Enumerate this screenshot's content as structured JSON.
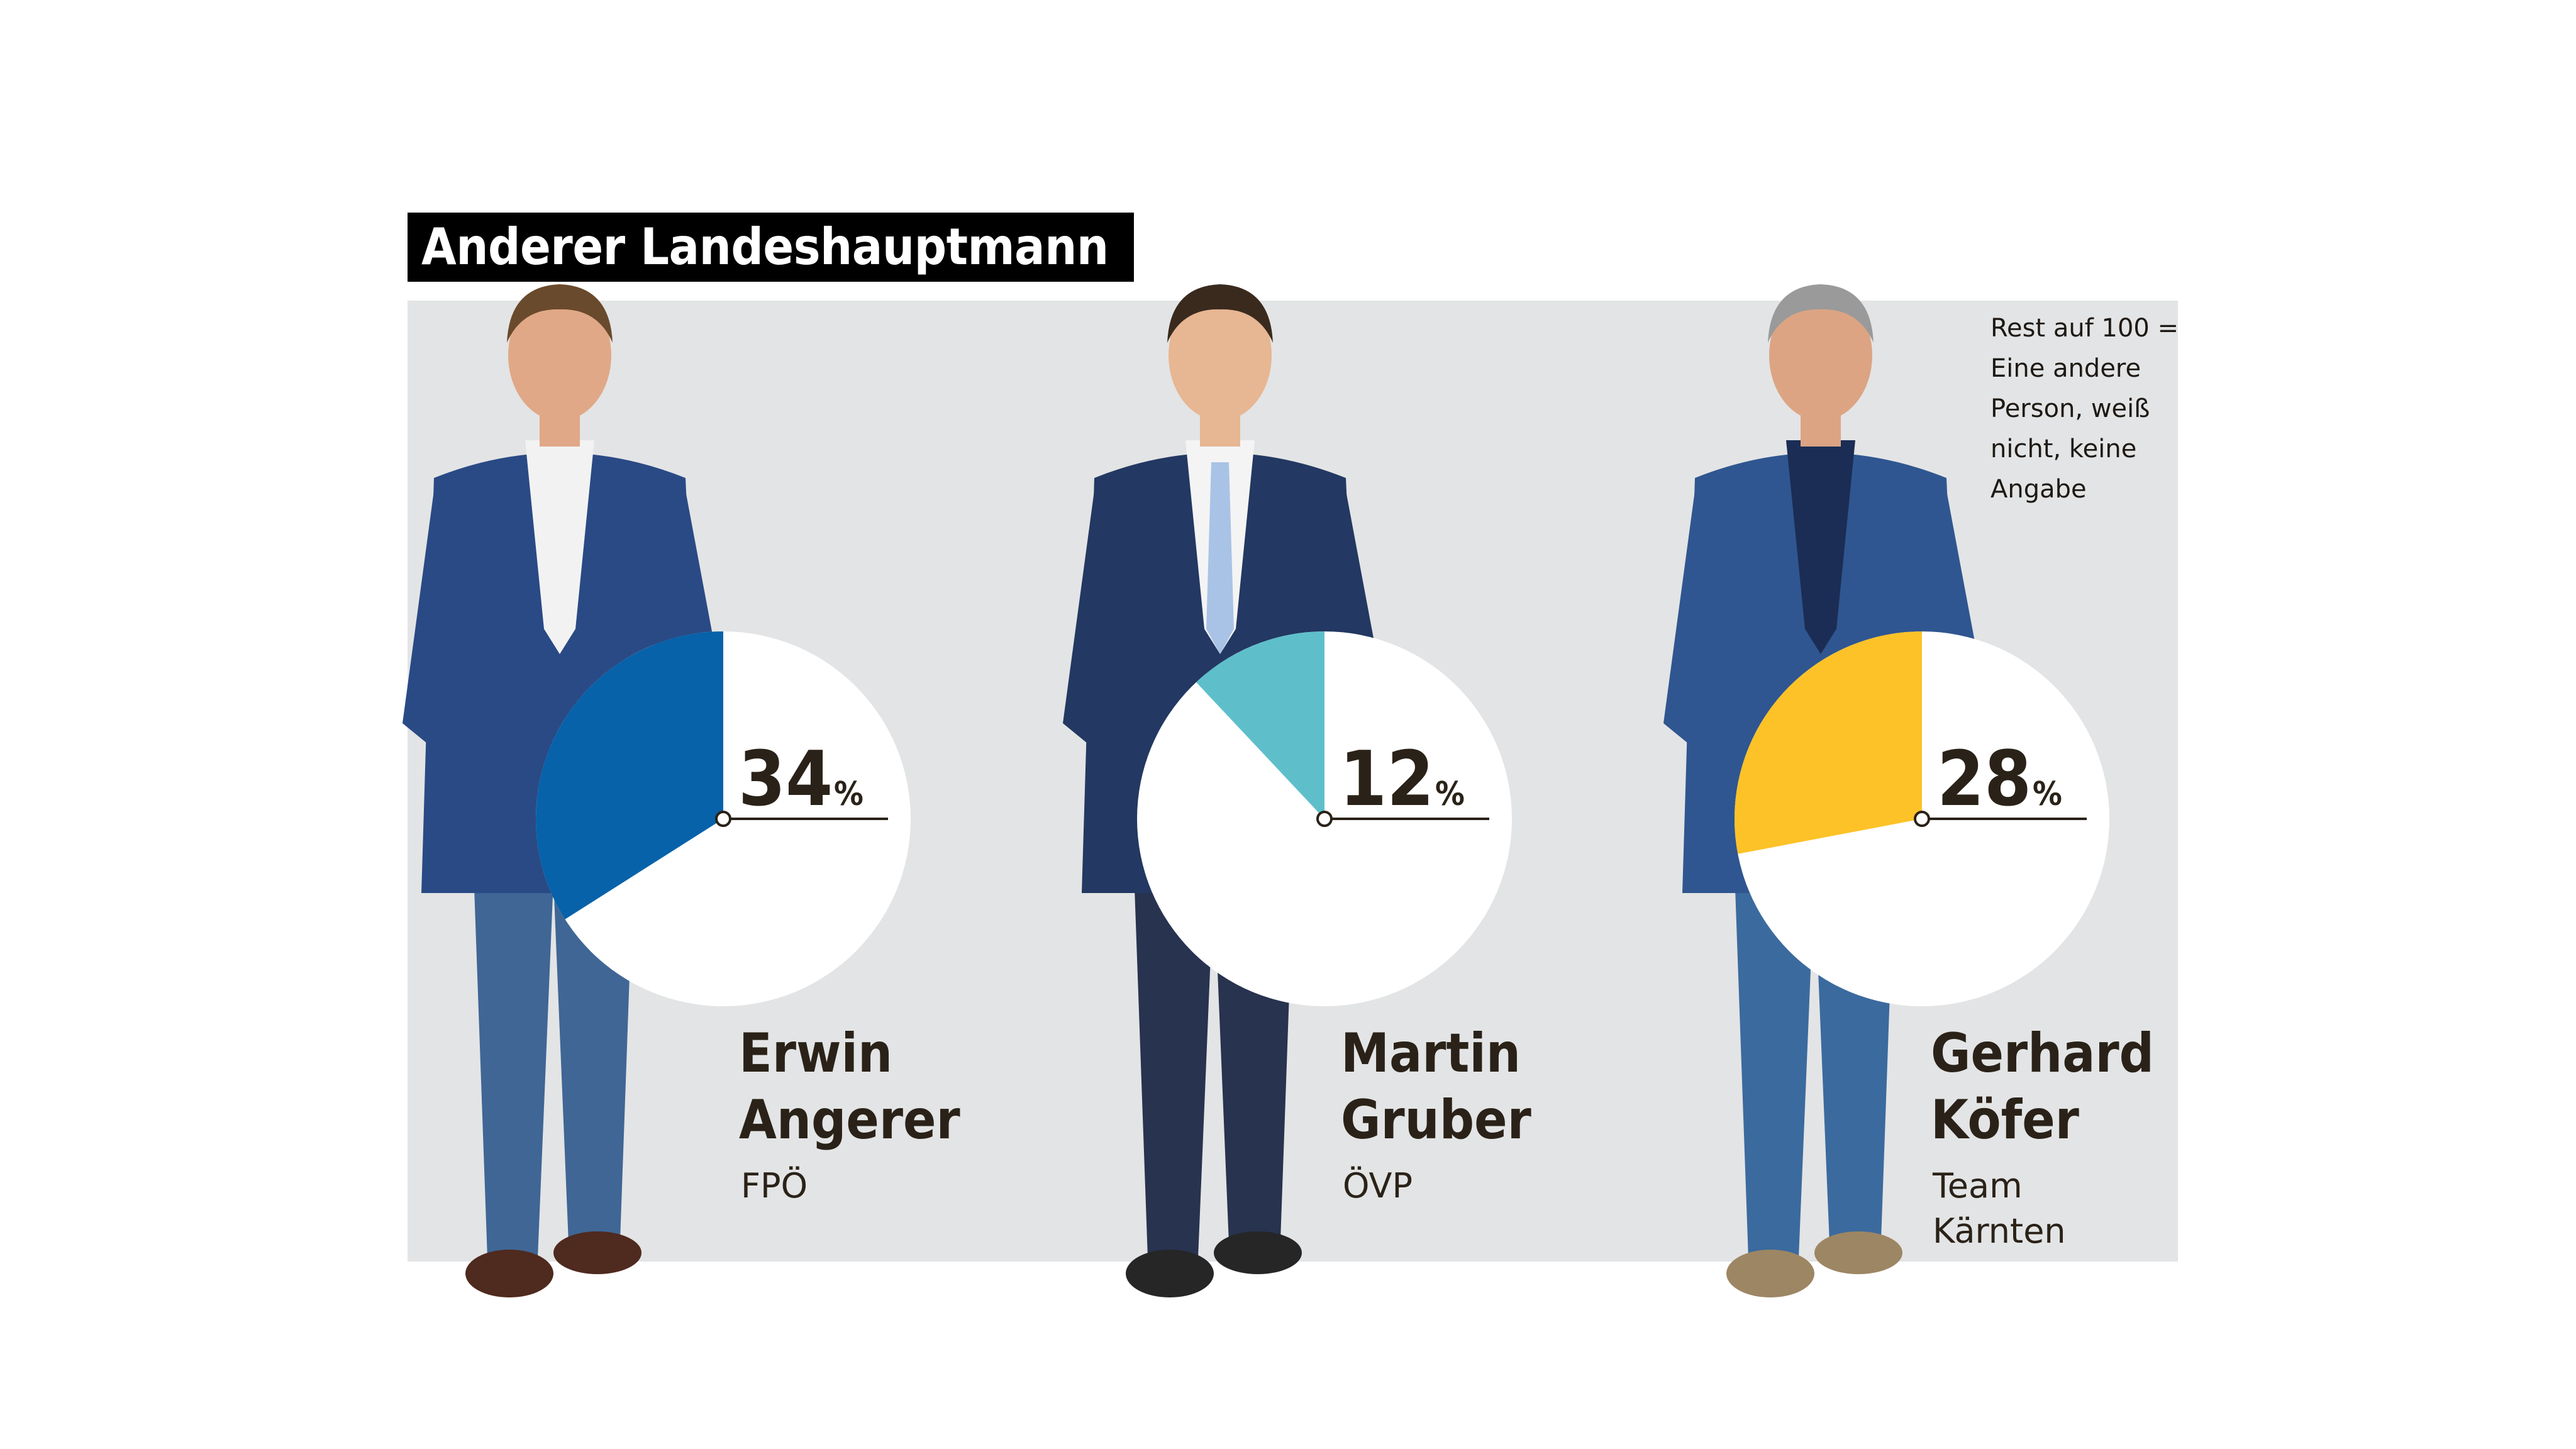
{
  "title": "Anderer Landeshauptmann",
  "note": "Rest auf 100 =\nEine andere\nPerson, weiß\nnicht, keine\nAngabe",
  "colors": {
    "background_panel": "#e3e4e5",
    "pie_remainder": "#ffffff",
    "text": "#2a2218"
  },
  "chart_data": [
    {
      "type": "pie",
      "values": [
        34
      ],
      "unit": "%",
      "value_label": "34",
      "unit_label": "%",
      "name_line1": "Erwin",
      "name_line2": "Angerer",
      "party_line1": "FPÖ",
      "party_line2": "",
      "color": "#0762aa"
    },
    {
      "type": "pie",
      "values": [
        12
      ],
      "unit": "%",
      "value_label": "12",
      "unit_label": "%",
      "name_line1": "Martin",
      "name_line2": "Gruber",
      "party_line1": "ÖVP",
      "party_line2": "",
      "color": "#5ebfcb"
    },
    {
      "type": "pie",
      "values": [
        28
      ],
      "unit": "%",
      "value_label": "28",
      "unit_label": "%",
      "name_line1": "Gerhard",
      "name_line2": "Köfer",
      "party_line1": "Team",
      "party_line2": "Kärnten",
      "color": "#fdc228"
    }
  ]
}
